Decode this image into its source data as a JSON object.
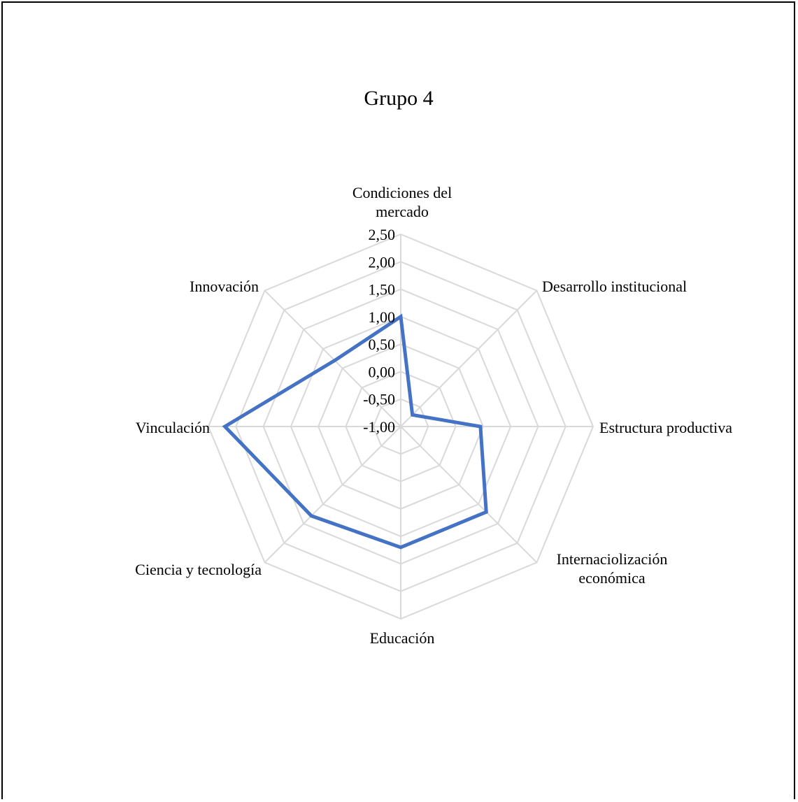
{
  "chart_data": {
    "type": "radar",
    "title": "Grupo 4",
    "categories": [
      [
        "Condiciones del",
        "mercado"
      ],
      [
        "Desarrollo institucional"
      ],
      [
        "Estructura productiva"
      ],
      [
        "Internaciolización",
        "económica"
      ],
      [
        "Educación"
      ],
      [
        "Ciencia y tecnología"
      ],
      [
        "Vinculación"
      ],
      [
        "Innovación"
      ]
    ],
    "series": [
      {
        "values": [
          1.0,
          -0.7,
          0.45,
          1.2,
          1.2,
          1.3,
          2.2,
          0.7
        ],
        "color": "#4472c4"
      }
    ],
    "rlim": [
      -1.0,
      2.5
    ],
    "ticks": [
      "2,50",
      "2,00",
      "1,50",
      "1,00",
      "0,50",
      "0,00",
      "-0,50",
      "-1,00"
    ],
    "tick_values": [
      2.5,
      2.0,
      1.5,
      1.0,
      0.5,
      0.0,
      -0.5,
      -1.0
    ],
    "grid": true,
    "grid_color": "#d9d9d9",
    "legend": "none"
  }
}
